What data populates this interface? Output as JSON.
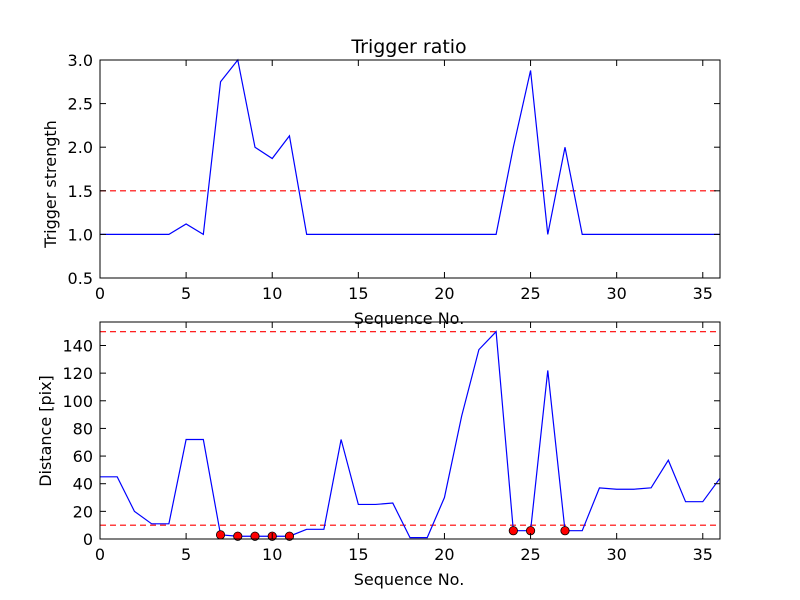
{
  "chart_data": [
    {
      "type": "line",
      "title": "Trigger ratio",
      "xlabel": "Sequence No.",
      "ylabel": "Trigger strength",
      "xlim": [
        0,
        36
      ],
      "ylim": [
        0.5,
        3.0
      ],
      "x_ticks": [
        0,
        5,
        10,
        15,
        20,
        25,
        30,
        35
      ],
      "y_ticks": [
        0.5,
        1.0,
        1.5,
        2.0,
        2.5,
        3.0
      ],
      "x_tick_labels": [
        "0",
        "5",
        "10",
        "15",
        "20",
        "25",
        "30",
        "35"
      ],
      "y_tick_labels": [
        "0.5",
        "1.0",
        "1.5",
        "2.0",
        "2.5",
        "3.0"
      ],
      "grid": false,
      "series": [
        {
          "color": "#0000ff",
          "x": [
            0,
            1,
            2,
            3,
            4,
            5,
            6,
            7,
            8,
            9,
            10,
            11,
            12,
            13,
            14,
            15,
            16,
            17,
            18,
            19,
            20,
            21,
            22,
            23,
            24,
            25,
            26,
            27,
            28,
            29,
            30,
            31,
            32,
            33,
            34,
            35,
            36
          ],
          "y": [
            1.0,
            1.0,
            1.0,
            1.0,
            1.0,
            1.12,
            1.0,
            2.75,
            3.0,
            2.0,
            1.87,
            2.13,
            1.0,
            1.0,
            1.0,
            1.0,
            1.0,
            1.0,
            1.0,
            1.0,
            1.0,
            1.0,
            1.0,
            1.0,
            2.0,
            2.88,
            1.0,
            2.0,
            1.0,
            1.0,
            1.0,
            1.0,
            1.0,
            1.0,
            1.0,
            1.0,
            1.0
          ]
        }
      ],
      "threshold_lines": [
        {
          "y": 1.5,
          "color": "#ff0000",
          "style": "dashed"
        }
      ]
    },
    {
      "type": "line",
      "title": "",
      "xlabel": "Sequence No.",
      "ylabel": "Distance [pix]",
      "xlim": [
        0,
        36
      ],
      "ylim": [
        0,
        157
      ],
      "x_ticks": [
        0,
        5,
        10,
        15,
        20,
        25,
        30,
        35
      ],
      "y_ticks": [
        0,
        20,
        40,
        60,
        80,
        100,
        120,
        140
      ],
      "x_tick_labels": [
        "0",
        "5",
        "10",
        "15",
        "20",
        "25",
        "30",
        "35"
      ],
      "y_tick_labels": [
        "0",
        "20",
        "40",
        "60",
        "80",
        "100",
        "120",
        "140"
      ],
      "grid": false,
      "series": [
        {
          "color": "#0000ff",
          "x": [
            0,
            1,
            2,
            3,
            4,
            5,
            6,
            7,
            8,
            9,
            10,
            11,
            12,
            13,
            14,
            15,
            16,
            17,
            18,
            19,
            20,
            21,
            22,
            23,
            24,
            25,
            26,
            27,
            28,
            29,
            30,
            31,
            32,
            33,
            34,
            35,
            36
          ],
          "y": [
            45,
            45,
            20,
            11,
            11,
            72,
            72,
            3,
            2,
            2,
            2,
            2,
            7,
            7,
            72,
            25,
            25,
            26,
            1,
            1,
            30,
            89,
            137,
            150,
            6,
            6,
            122,
            6,
            6,
            37,
            36,
            36,
            37,
            57,
            27,
            27,
            44
          ]
        }
      ],
      "markers": {
        "color": "#ff0000",
        "x": [
          7,
          8,
          9,
          10,
          11,
          24,
          25,
          27
        ],
        "y": [
          3,
          2,
          2,
          2,
          2,
          6,
          6,
          6
        ]
      },
      "threshold_lines": [
        {
          "y": 150,
          "color": "#ff0000",
          "style": "dashed"
        },
        {
          "y": 10,
          "color": "#ff0000",
          "style": "dashed"
        }
      ]
    }
  ]
}
